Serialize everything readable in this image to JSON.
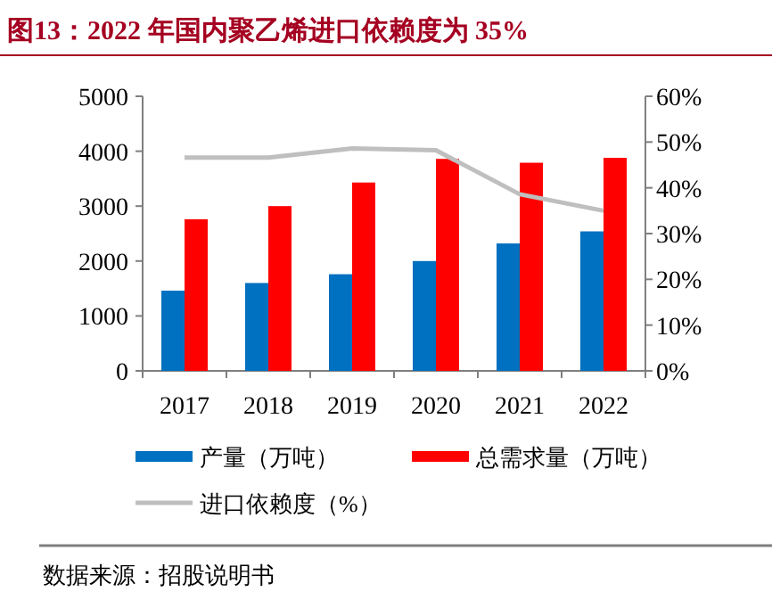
{
  "chart_data": {
    "type": "bar",
    "title": "图13：2022 年国内聚乙烯进口依赖度为 35%",
    "categories": [
      "2017",
      "2018",
      "2019",
      "2020",
      "2021",
      "2022"
    ],
    "series": [
      {
        "name": "产量（万吨）",
        "color": "#0070c0",
        "values": [
          1460,
          1600,
          1760,
          2000,
          2320,
          2540
        ]
      },
      {
        "name": "总需求量（万吨）",
        "color": "#ff0000",
        "values": [
          2760,
          3000,
          3430,
          3860,
          3790,
          3880
        ]
      },
      {
        "name": "进口依赖度（%）",
        "type": "line",
        "axis": "y2",
        "color": "#bfbfbf",
        "values": [
          46.6,
          46.6,
          48.6,
          48.2,
          38.6,
          35
        ]
      }
    ],
    "ylim": [
      0,
      5000
    ],
    "yticks": [
      0,
      1000,
      2000,
      3000,
      4000,
      5000
    ],
    "y2lim": [
      0,
      60
    ],
    "y2ticks": [
      {
        "value": 0,
        "label": "0%"
      },
      {
        "value": 10,
        "label": "10%"
      },
      {
        "value": 20,
        "label": "20%"
      },
      {
        "value": 30,
        "label": "30%"
      },
      {
        "value": 40,
        "label": "40%"
      },
      {
        "value": 50,
        "label": "50%"
      },
      {
        "value": 60,
        "label": "60%"
      }
    ],
    "legend": "bottom",
    "annotations": [
      "数据来源：招股说明书"
    ]
  }
}
